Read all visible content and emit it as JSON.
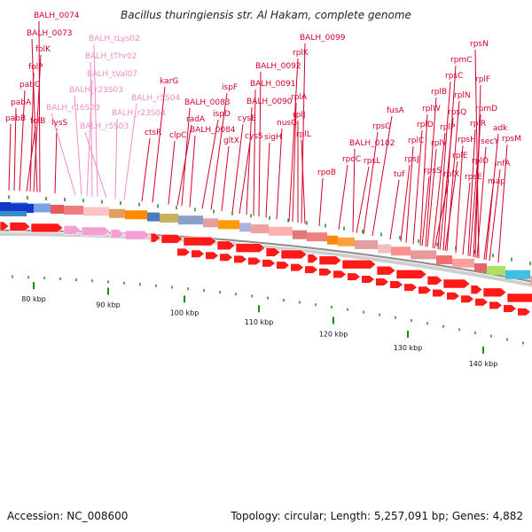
{
  "title": "Bacillus thuringiensis str. Al Hakam, complete genome",
  "footer": {
    "accession": "Accession: NC_008600",
    "summary": "Topology: circular; Length: 5,257,091 bp; Genes: 4,882"
  },
  "colors": {
    "gene_label": "#d4002a",
    "rna_label": "#f08cc8",
    "cds_arrow": "#ff1a1a",
    "rna_arrow": "#f5a0d2",
    "tick": "#1a8a1a",
    "backbone": "#8c8c8c"
  },
  "ticks": [
    "80 kbp",
    "90 kbp",
    "100 kbp",
    "110 kbp",
    "120 kbp",
    "130 kbp",
    "140 kbp"
  ],
  "features": [
    {
      "label": "pabB",
      "type": "gene"
    },
    {
      "label": "pabA",
      "type": "gene"
    },
    {
      "label": "pabC",
      "type": "gene"
    },
    {
      "label": "folB",
      "type": "gene"
    },
    {
      "label": "folP",
      "type": "gene"
    },
    {
      "label": "folK",
      "type": "gene"
    },
    {
      "label": "BALH_0073",
      "type": "gene"
    },
    {
      "label": "BALH_0074",
      "type": "gene"
    },
    {
      "label": "lysS",
      "type": "gene"
    },
    {
      "label": "BALH_r16S03",
      "type": "rna"
    },
    {
      "label": "BALH_r23S03",
      "type": "rna"
    },
    {
      "label": "BALH_tVal07",
      "type": "rna"
    },
    {
      "label": "BALH_tThr02",
      "type": "rna"
    },
    {
      "label": "BALH_tLys02",
      "type": "rna"
    },
    {
      "label": "BALH_r5S03",
      "type": "rna"
    },
    {
      "label": "BALH_r23S04",
      "type": "rna"
    },
    {
      "label": "BALH_r5S04",
      "type": "rna"
    },
    {
      "label": "ctsR",
      "type": "gene"
    },
    {
      "label": "karG",
      "type": "gene"
    },
    {
      "label": "clpC",
      "type": "gene"
    },
    {
      "label": "radA",
      "type": "gene"
    },
    {
      "label": "BALH_0083",
      "type": "gene"
    },
    {
      "label": "BALH_0084",
      "type": "gene"
    },
    {
      "label": "ispD",
      "type": "gene"
    },
    {
      "label": "ispF",
      "type": "gene"
    },
    {
      "label": "gltX",
      "type": "gene"
    },
    {
      "label": "cysE",
      "type": "gene"
    },
    {
      "label": "cysS",
      "type": "gene"
    },
    {
      "label": "BALH_0090",
      "type": "gene"
    },
    {
      "label": "BALH_0091",
      "type": "gene"
    },
    {
      "label": "BALH_0092",
      "type": "gene"
    },
    {
      "label": "sigH",
      "type": "gene"
    },
    {
      "label": "nusG",
      "type": "gene"
    },
    {
      "label": "rplK",
      "type": "gene"
    },
    {
      "label": "BALH_0099",
      "type": "gene"
    },
    {
      "label": "rplA",
      "type": "gene"
    },
    {
      "label": "rplJ",
      "type": "gene"
    },
    {
      "label": "rplL",
      "type": "gene"
    },
    {
      "label": "rpoB",
      "type": "gene"
    },
    {
      "label": "rpoC",
      "type": "gene"
    },
    {
      "label": "BALH_0102",
      "type": "gene"
    },
    {
      "label": "rpsL",
      "type": "gene"
    },
    {
      "label": "rpsG",
      "type": "gene"
    },
    {
      "label": "fusA",
      "type": "gene"
    },
    {
      "label": "tuf",
      "type": "gene"
    },
    {
      "label": "rpsJ",
      "type": "gene"
    },
    {
      "label": "rplC",
      "type": "gene"
    },
    {
      "label": "rplD",
      "type": "gene"
    },
    {
      "label": "rplW",
      "type": "gene"
    },
    {
      "label": "rplB",
      "type": "gene"
    },
    {
      "label": "rpsS",
      "type": "gene"
    },
    {
      "label": "rplV",
      "type": "gene"
    },
    {
      "label": "rpsC",
      "type": "gene"
    },
    {
      "label": "rplP",
      "type": "gene"
    },
    {
      "label": "rpmC",
      "type": "gene"
    },
    {
      "label": "rpsQ",
      "type": "gene"
    },
    {
      "label": "rplN",
      "type": "gene"
    },
    {
      "label": "rplX",
      "type": "gene"
    },
    {
      "label": "rplE",
      "type": "gene"
    },
    {
      "label": "rpsN",
      "type": "gene"
    },
    {
      "label": "rpsH",
      "type": "gene"
    },
    {
      "label": "rplF",
      "type": "gene"
    },
    {
      "label": "rplR",
      "type": "gene"
    },
    {
      "label": "rpsE",
      "type": "gene"
    },
    {
      "label": "rpmD",
      "type": "gene"
    },
    {
      "label": "rplO",
      "type": "gene"
    },
    {
      "label": "secY",
      "type": "gene"
    },
    {
      "label": "adk",
      "type": "gene"
    },
    {
      "label": "map",
      "type": "gene"
    },
    {
      "label": "infA",
      "type": "gene"
    },
    {
      "label": "rpsM",
      "type": "gene"
    }
  ]
}
